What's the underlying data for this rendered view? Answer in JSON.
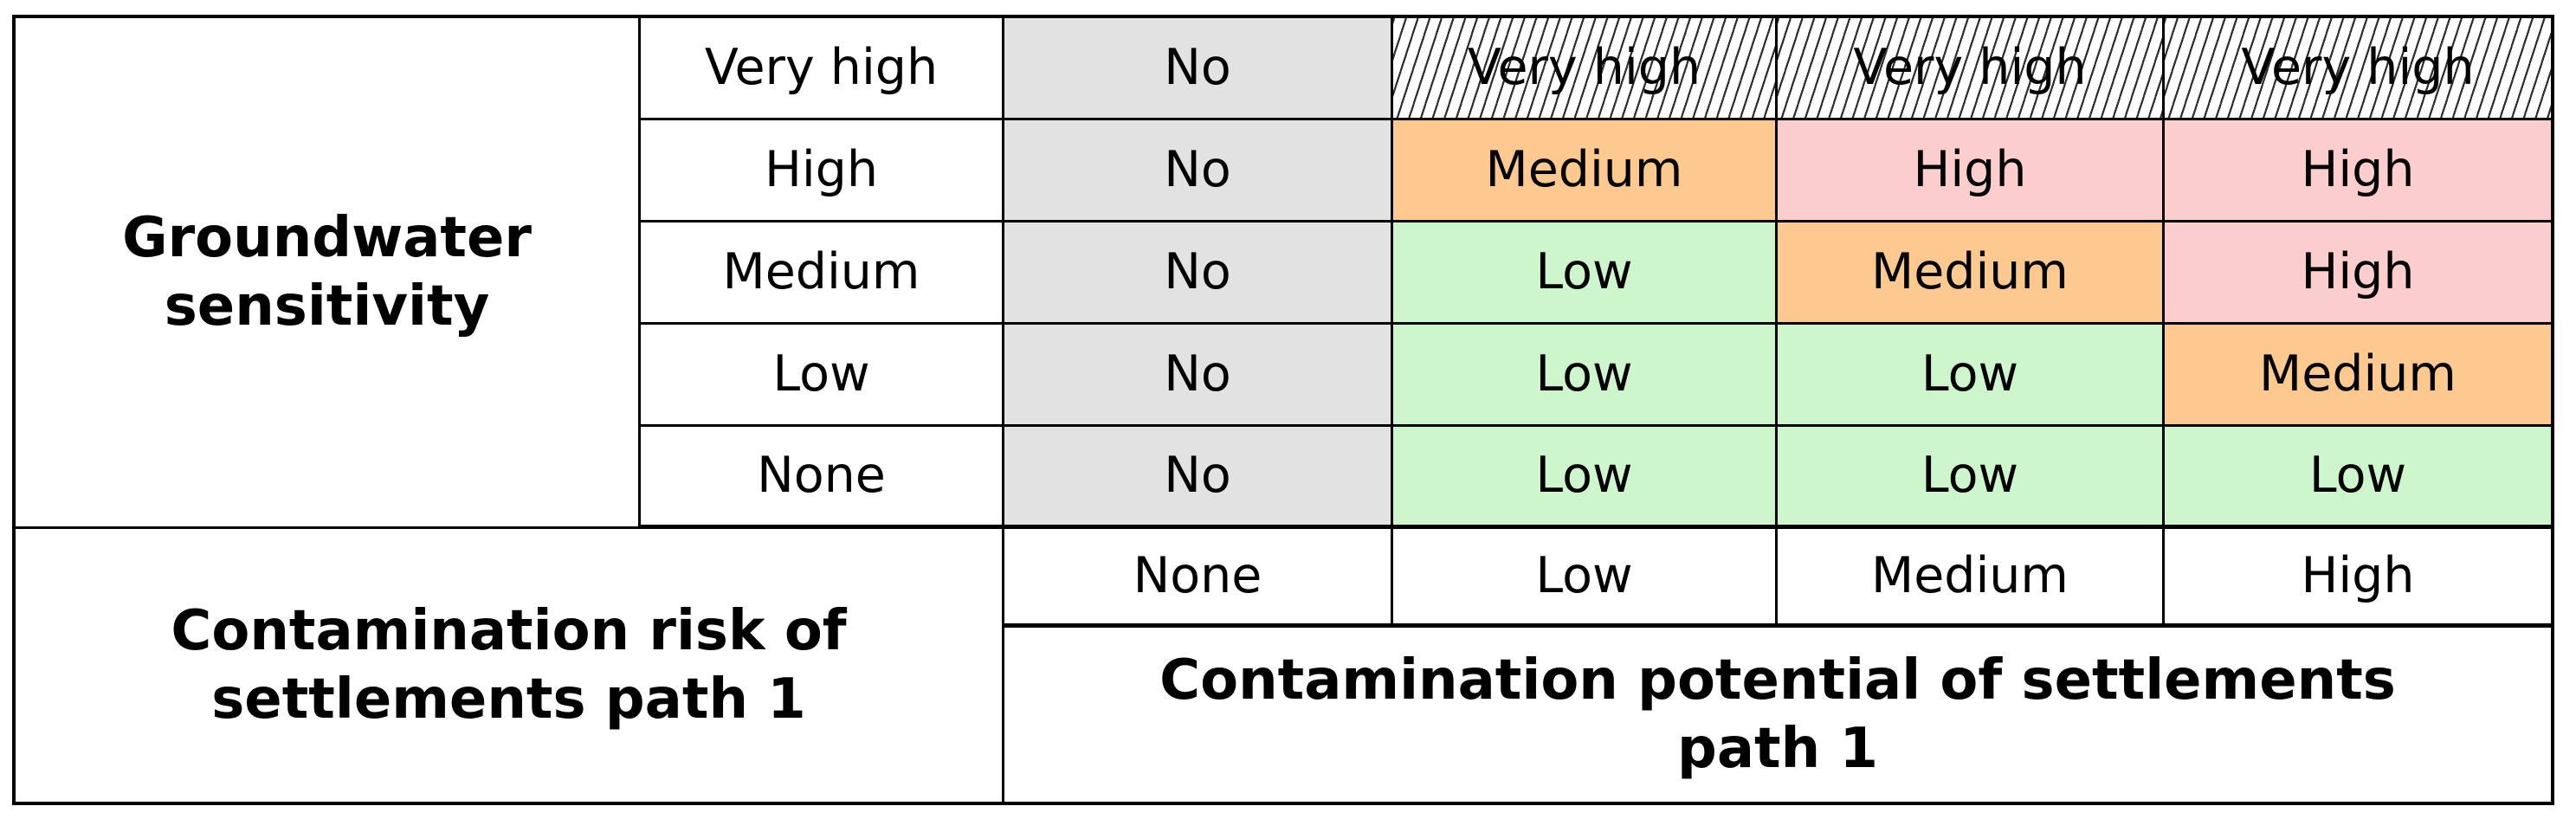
{
  "figure": {
    "groundwater_title": "Groundwater\nsensitivity",
    "risk_title": "Contamination risk of\nsettlements path 1",
    "potential_title": "Contamination potential of settlements\npath 1",
    "sensitivity_labels": [
      "Very high",
      "High",
      "Medium",
      "Low",
      "None"
    ],
    "potential_labels": [
      "None",
      "Low",
      "Medium",
      "High"
    ],
    "matrix": [
      [
        "No",
        "Very high",
        "Very high",
        "Very high"
      ],
      [
        "No",
        "Medium",
        "High",
        "High"
      ],
      [
        "No",
        "Low",
        "Medium",
        "High"
      ],
      [
        "No",
        "Low",
        "Low",
        "Medium"
      ],
      [
        "No",
        "Low",
        "Low",
        "Low"
      ]
    ]
  },
  "colors": {
    "no_cell": "#e2e2e2",
    "low_cell": "#cdf6cd",
    "medium_cell": "#fec98f",
    "high_cell": "#fccdcd",
    "very_high_cell": "hatched-diagonal-black-on-white",
    "border": "#000000",
    "background": "#ffffff",
    "text": "#000000"
  },
  "chart_data": {
    "type": "heatmap",
    "title": "Contamination risk of settlements path 1",
    "x_axis": {
      "label": "Contamination potential of settlements path 1",
      "categories": [
        "None",
        "Low",
        "Medium",
        "High"
      ]
    },
    "y_axis": {
      "label": "Groundwater sensitivity",
      "categories": [
        "Very high",
        "High",
        "Medium",
        "Low",
        "None"
      ]
    },
    "cells": [
      [
        "No",
        "Very high",
        "Very high",
        "Very high"
      ],
      [
        "No",
        "Medium",
        "High",
        "High"
      ],
      [
        "No",
        "Low",
        "Medium",
        "High"
      ],
      [
        "No",
        "Low",
        "Low",
        "Medium"
      ],
      [
        "No",
        "Low",
        "Low",
        "Low"
      ]
    ],
    "cell_color_coding": {
      "No": "gray",
      "Low": "light-green",
      "Medium": "orange",
      "High": "pink",
      "Very high": "black-diagonal-hatch-on-white"
    },
    "legend_position": "none",
    "grid": true
  }
}
